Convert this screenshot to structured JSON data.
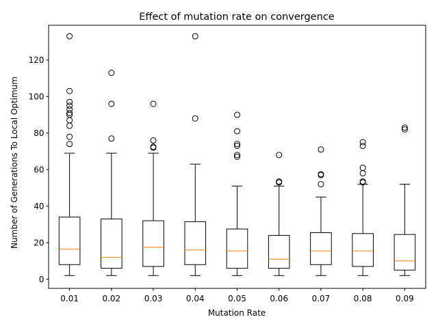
{
  "chart_data": {
    "type": "boxplot",
    "title": "Effect of mutation rate on convergence",
    "xlabel": "Mutation Rate",
    "ylabel": "Number of Generations To Local Optimum",
    "ylim": [
      -5,
      139
    ],
    "yticks": [
      0,
      20,
      40,
      60,
      80,
      100,
      120
    ],
    "grid": false,
    "colors": {
      "box": "#000000",
      "median": "#ff7f0e",
      "flier": "#000000"
    },
    "groups": [
      {
        "label": "0.01",
        "whisker_low": 2,
        "q1": 8,
        "median": 16.5,
        "q3": 34,
        "whisker_high": 69,
        "outliers": [
          74,
          78,
          84,
          87,
          90,
          91,
          93,
          95,
          97,
          103,
          133
        ]
      },
      {
        "label": "0.02",
        "whisker_low": 2,
        "q1": 6,
        "median": 12,
        "q3": 33,
        "whisker_high": 69,
        "outliers": [
          77,
          96,
          113
        ]
      },
      {
        "label": "0.03",
        "whisker_low": 2,
        "q1": 7,
        "median": 17.5,
        "q3": 32,
        "whisker_high": 69,
        "outliers": [
          72,
          72.5,
          76,
          96
        ]
      },
      {
        "label": "0.04",
        "whisker_low": 2,
        "q1": 8,
        "median": 16,
        "q3": 31.5,
        "whisker_high": 63,
        "outliers": [
          88,
          133
        ]
      },
      {
        "label": "0.05",
        "whisker_low": 2,
        "q1": 6,
        "median": 15.5,
        "q3": 27.5,
        "whisker_high": 51,
        "outliers": [
          67,
          68,
          73,
          74,
          81,
          90
        ]
      },
      {
        "label": "0.06",
        "whisker_low": 2,
        "q1": 6,
        "median": 11,
        "q3": 24,
        "whisker_high": 51,
        "outliers": [
          53,
          53.5,
          68
        ]
      },
      {
        "label": "0.07",
        "whisker_low": 2,
        "q1": 8,
        "median": 15.5,
        "q3": 25.5,
        "whisker_high": 45,
        "outliers": [
          52,
          57,
          57.5,
          71
        ]
      },
      {
        "label": "0.08",
        "whisker_low": 2,
        "q1": 7,
        "median": 15.5,
        "q3": 25,
        "whisker_high": 52,
        "outliers": [
          53,
          53.5,
          58,
          61,
          73,
          75
        ]
      },
      {
        "label": "0.09",
        "whisker_low": 2,
        "q1": 5,
        "median": 10,
        "q3": 24.5,
        "whisker_high": 52,
        "outliers": [
          82,
          83
        ]
      }
    ]
  }
}
